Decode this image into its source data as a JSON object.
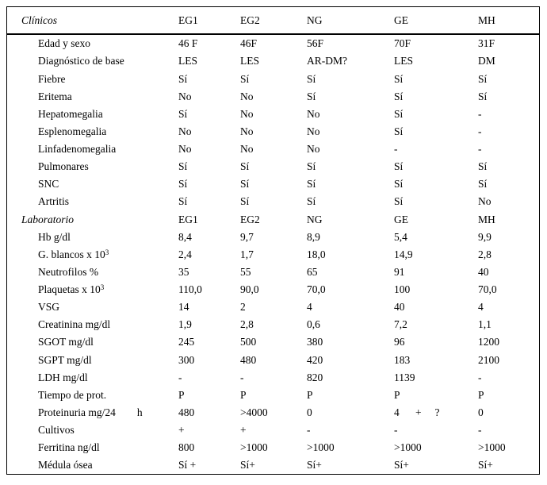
{
  "table": {
    "columns": [
      "EG1",
      "EG2",
      "NG",
      "GE",
      "MH"
    ],
    "sections": [
      {
        "title": "Clínicos",
        "rows": [
          {
            "label": "Edad y sexo",
            "values": [
              "46 F",
              "46F",
              "56F",
              "70F",
              "31F"
            ]
          },
          {
            "label": "Diagnóstico de base",
            "values": [
              "LES",
              "LES",
              "AR-DM?",
              "LES",
              "DM"
            ]
          },
          {
            "label": "Fiebre",
            "values": [
              "Sí",
              "Sí",
              "Sí",
              "Sí",
              "Sí"
            ]
          },
          {
            "label": "Eritema",
            "values": [
              "No",
              "No",
              "Sí",
              "Sí",
              "Sí"
            ]
          },
          {
            "label": "Hepatomegalia",
            "values": [
              "Sí",
              "No",
              "No",
              "Sí",
              "-"
            ]
          },
          {
            "label": "Esplenomegalia",
            "values": [
              "No",
              "No",
              "No",
              "Sí",
              "-"
            ]
          },
          {
            "label": "Linfadenomegalia",
            "values": [
              "No",
              "No",
              "No",
              "-",
              "-"
            ]
          },
          {
            "label": "Pulmonares",
            "values": [
              "Sí",
              "Sí",
              "Sí",
              "Sí",
              "Sí"
            ]
          },
          {
            "label": "SNC",
            "values": [
              "Sí",
              "Sí",
              "Sí",
              "Sí",
              "Sí"
            ]
          },
          {
            "label": "Artritis",
            "values": [
              "Sí",
              "Sí",
              "Sí",
              "Sí",
              "No"
            ]
          }
        ]
      },
      {
        "title": "Laboratorio",
        "rows": [
          {
            "label": "Hb g/dl",
            "values": [
              "8,4",
              "9,7",
              "8,9",
              "5,4",
              "9,9"
            ]
          },
          {
            "label": "G. blancos x 10",
            "sup": "3",
            "values": [
              "2,4",
              "1,7",
              "18,0",
              "14,9",
              "2,8"
            ]
          },
          {
            "label": "Neutrofilos %",
            "values": [
              "35",
              "55",
              "65",
              "91",
              "40"
            ]
          },
          {
            "label": "Plaquetas x 10",
            "sup": "3",
            "values": [
              "110,0",
              "90,0",
              "70,0",
              "100",
              "70,0"
            ]
          },
          {
            "label": "VSG",
            "values": [
              "14",
              "2",
              "4",
              "40",
              "4"
            ]
          },
          {
            "label": "Creatinina mg/dl",
            "values": [
              "1,9",
              "2,8",
              "0,6",
              "7,2",
              "1,1"
            ]
          },
          {
            "label": "SGOT mg/dl",
            "values": [
              "245",
              "500",
              "380",
              "96",
              "1200"
            ]
          },
          {
            "label": "SGPT mg/dl",
            "values": [
              "300",
              "480",
              "420",
              "183",
              "2100"
            ]
          },
          {
            "label": "LDH mg/dl",
            "values": [
              "-",
              "-",
              "820",
              "1139",
              "-"
            ]
          },
          {
            "label": "Tiempo de prot.",
            "values": [
              "P",
              "P",
              "P",
              "P",
              "P"
            ]
          },
          {
            "label": "Proteinuria mg/24        h",
            "values": [
              "480",
              ">4000",
              "0",
              "4      +     ?",
              "0"
            ]
          },
          {
            "label": "Cultivos",
            "values": [
              "+",
              "+",
              "-",
              "-",
              "-"
            ]
          },
          {
            "label": "Ferritina ng/dl",
            "values": [
              "800",
              ">1000",
              ">1000",
              ">1000",
              ">1000"
            ]
          },
          {
            "label": "Médula ósea",
            "values": [
              "Sí +",
              "Sí+",
              "Sí+",
              "Sí+",
              "Sí+"
            ]
          }
        ]
      }
    ]
  }
}
